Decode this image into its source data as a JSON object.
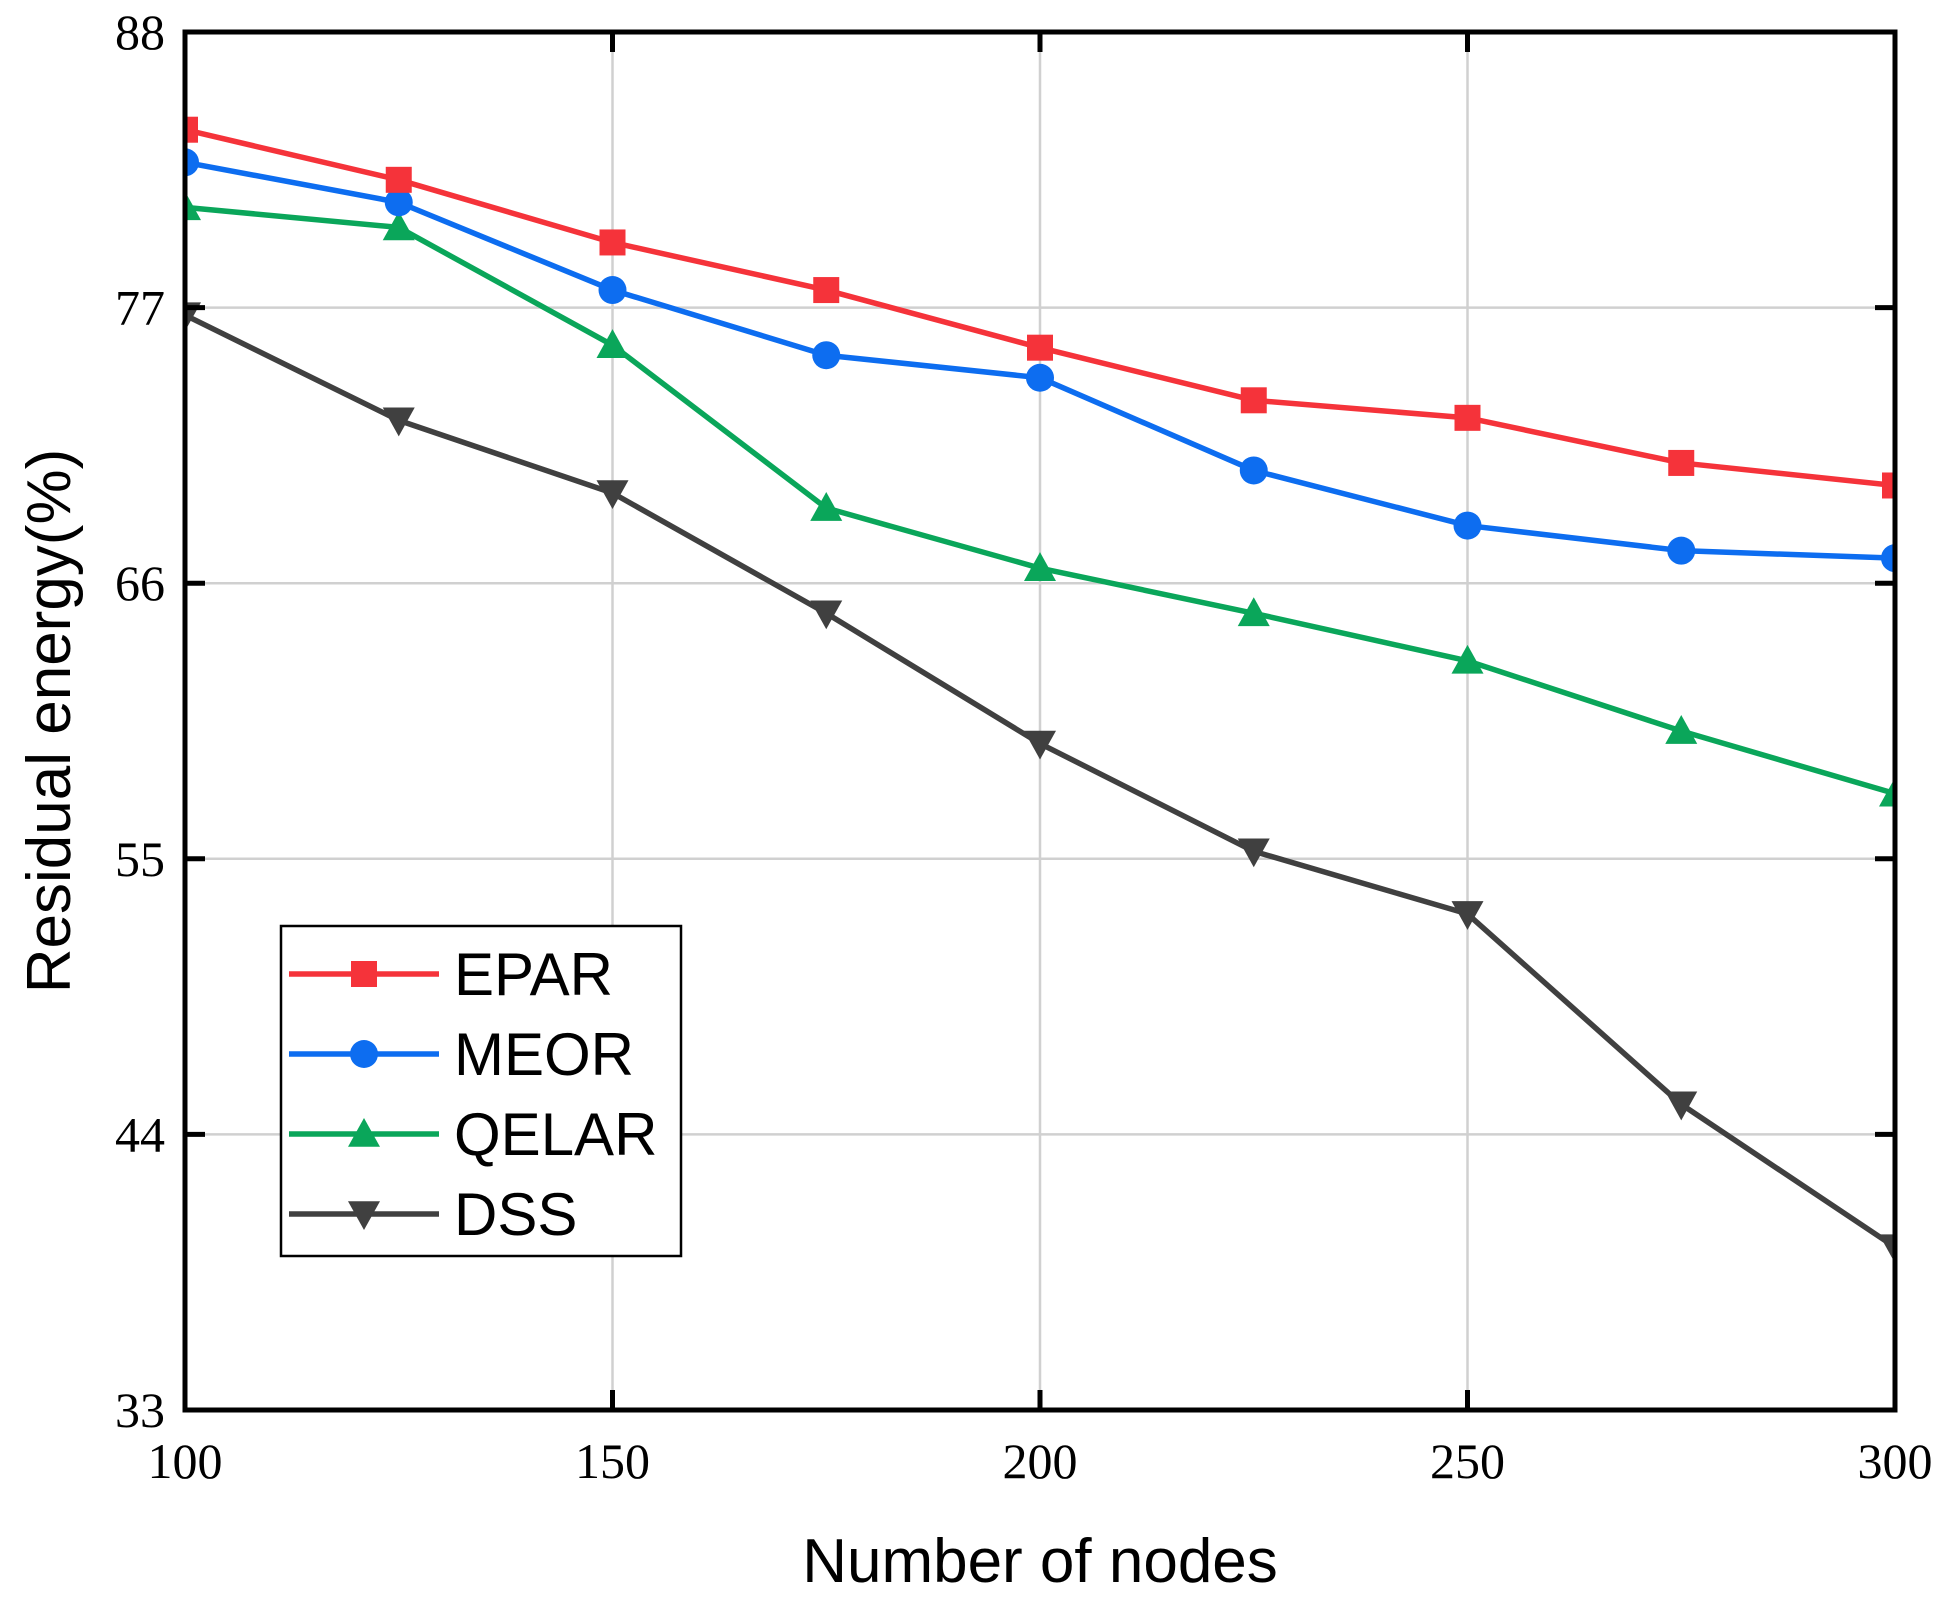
{
  "chart_data": {
    "type": "line",
    "title": "",
    "xlabel": "Number of nodes",
    "ylabel": "Residual energy(%)",
    "xlim": [
      100,
      300
    ],
    "ylim": [
      33,
      88
    ],
    "xticks": [
      100,
      150,
      200,
      250,
      300
    ],
    "yticks": [
      33,
      44,
      55,
      66,
      77,
      88
    ],
    "xtick_labels": [
      "100",
      "150",
      "200",
      "250",
      "300"
    ],
    "ytick_labels": [
      "33",
      "44",
      "55",
      "66",
      "77",
      "88"
    ],
    "grid": true,
    "legend_position": "lower-left",
    "x": [
      100,
      125,
      150,
      175,
      200,
      225,
      250,
      275,
      300
    ],
    "series": [
      {
        "name": "EPAR",
        "color": "#f5333a",
        "marker": "square",
        "values": [
          84.1,
          82.1,
          79.6,
          77.7,
          75.4,
          73.3,
          72.6,
          70.8,
          69.9
        ]
      },
      {
        "name": "MEOR",
        "color": "#0d6df0",
        "marker": "circle",
        "values": [
          82.8,
          81.2,
          77.7,
          75.1,
          74.2,
          70.5,
          68.3,
          67.3,
          67.0
        ]
      },
      {
        "name": "QELAR",
        "color": "#0aa65a",
        "marker": "triangle-up",
        "values": [
          81.0,
          80.2,
          75.5,
          69.0,
          66.6,
          64.8,
          62.9,
          60.1,
          57.6
        ]
      },
      {
        "name": "DSS",
        "color": "#404040",
        "marker": "triangle-down",
        "values": [
          76.7,
          72.5,
          69.6,
          64.8,
          59.6,
          55.3,
          52.8,
          45.2,
          39.5
        ]
      }
    ]
  }
}
